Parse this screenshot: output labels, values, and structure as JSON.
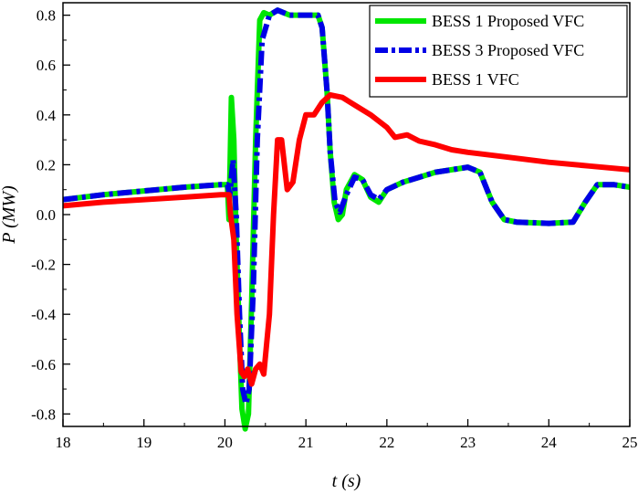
{
  "chart_data": {
    "type": "line",
    "xlabel": "t (s)",
    "ylabel": "P (MW)",
    "xlim": [
      18,
      25
    ],
    "ylim": [
      -0.85,
      0.85
    ],
    "x_ticks": [
      18,
      19,
      20,
      21,
      22,
      23,
      24,
      25
    ],
    "x_tick_labels": [
      "18",
      "19",
      "20",
      "21",
      "22",
      "23",
      "24",
      "25"
    ],
    "y_ticks": [
      0.8,
      0.6,
      0.4,
      0.2,
      0.0,
      -0.2,
      -0.4,
      -0.6,
      -0.8
    ],
    "y_tick_labels": [
      "0.8",
      "0.6",
      "0.4",
      "0.2",
      "0.0",
      "-0.2",
      "-0.4",
      "-0.6",
      "-0.8"
    ],
    "grid": false,
    "legend_position": "top-right",
    "series": [
      {
        "name": "BESS 1 Proposed VFC",
        "color": "#00e600",
        "style": "solid",
        "points": [
          [
            18,
            0.06
          ],
          [
            18.5,
            0.08
          ],
          [
            19,
            0.095
          ],
          [
            19.5,
            0.11
          ],
          [
            19.95,
            0.12
          ],
          [
            20.03,
            0.12
          ],
          [
            20.05,
            -0.02
          ],
          [
            20.08,
            0.47
          ],
          [
            20.11,
            0.3
          ],
          [
            20.14,
            -0.1
          ],
          [
            20.18,
            -0.5
          ],
          [
            20.21,
            -0.78
          ],
          [
            20.25,
            -0.86
          ],
          [
            20.29,
            -0.8
          ],
          [
            20.33,
            -0.35
          ],
          [
            20.38,
            0.3
          ],
          [
            20.43,
            0.78
          ],
          [
            20.48,
            0.81
          ],
          [
            20.55,
            0.8
          ],
          [
            20.65,
            0.82
          ],
          [
            20.8,
            0.8
          ],
          [
            21.0,
            0.8
          ],
          [
            21.15,
            0.8
          ],
          [
            21.2,
            0.75
          ],
          [
            21.26,
            0.5
          ],
          [
            21.3,
            0.25
          ],
          [
            21.35,
            0.05
          ],
          [
            21.4,
            -0.02
          ],
          [
            21.45,
            0.0
          ],
          [
            21.5,
            0.1
          ],
          [
            21.6,
            0.16
          ],
          [
            21.7,
            0.14
          ],
          [
            21.8,
            0.07
          ],
          [
            21.9,
            0.05
          ],
          [
            22.0,
            0.1
          ],
          [
            22.2,
            0.13
          ],
          [
            22.4,
            0.15
          ],
          [
            22.6,
            0.17
          ],
          [
            22.8,
            0.18
          ],
          [
            23.0,
            0.19
          ],
          [
            23.15,
            0.17
          ],
          [
            23.3,
            0.05
          ],
          [
            23.45,
            -0.02
          ],
          [
            23.6,
            -0.03
          ],
          [
            24.0,
            -0.035
          ],
          [
            24.3,
            -0.03
          ],
          [
            24.45,
            0.05
          ],
          [
            24.6,
            0.12
          ],
          [
            24.8,
            0.12
          ],
          [
            25,
            0.11
          ]
        ]
      },
      {
        "name": "BESS 3 Proposed VFC",
        "color": "#0000e6",
        "style": "dashdot",
        "points": [
          [
            18,
            0.06
          ],
          [
            18.5,
            0.08
          ],
          [
            19,
            0.095
          ],
          [
            19.5,
            0.11
          ],
          [
            19.95,
            0.12
          ],
          [
            20.03,
            0.12
          ],
          [
            20.06,
            0.08
          ],
          [
            20.1,
            0.22
          ],
          [
            20.14,
            0.0
          ],
          [
            20.18,
            -0.4
          ],
          [
            20.22,
            -0.7
          ],
          [
            20.26,
            -0.76
          ],
          [
            20.3,
            -0.7
          ],
          [
            20.35,
            -0.3
          ],
          [
            20.4,
            0.3
          ],
          [
            20.46,
            0.7
          ],
          [
            20.55,
            0.8
          ],
          [
            20.65,
            0.82
          ],
          [
            20.8,
            0.8
          ],
          [
            21.0,
            0.8
          ],
          [
            21.15,
            0.8
          ],
          [
            21.2,
            0.75
          ],
          [
            21.26,
            0.5
          ],
          [
            21.3,
            0.25
          ],
          [
            21.36,
            0.05
          ],
          [
            21.42,
            0.01
          ],
          [
            21.5,
            0.08
          ],
          [
            21.6,
            0.15
          ],
          [
            21.7,
            0.14
          ],
          [
            21.8,
            0.08
          ],
          [
            21.9,
            0.06
          ],
          [
            22.0,
            0.1
          ],
          [
            22.2,
            0.13
          ],
          [
            22.4,
            0.15
          ],
          [
            22.6,
            0.17
          ],
          [
            22.8,
            0.18
          ],
          [
            23.0,
            0.19
          ],
          [
            23.15,
            0.17
          ],
          [
            23.3,
            0.05
          ],
          [
            23.45,
            -0.02
          ],
          [
            23.6,
            -0.03
          ],
          [
            24.0,
            -0.035
          ],
          [
            24.3,
            -0.03
          ],
          [
            24.45,
            0.05
          ],
          [
            24.6,
            0.12
          ],
          [
            24.8,
            0.12
          ],
          [
            25,
            0.11
          ]
        ]
      },
      {
        "name": "BESS 1 VFC",
        "color": "#ff0000",
        "style": "solid",
        "points": [
          [
            18,
            0.035
          ],
          [
            18.5,
            0.05
          ],
          [
            19,
            0.06
          ],
          [
            19.5,
            0.07
          ],
          [
            19.95,
            0.08
          ],
          [
            20.05,
            0.08
          ],
          [
            20.07,
            0.0
          ],
          [
            20.11,
            -0.1
          ],
          [
            20.15,
            -0.4
          ],
          [
            20.2,
            -0.63
          ],
          [
            20.24,
            -0.65
          ],
          [
            20.28,
            -0.62
          ],
          [
            20.33,
            -0.68
          ],
          [
            20.38,
            -0.62
          ],
          [
            20.43,
            -0.6
          ],
          [
            20.48,
            -0.64
          ],
          [
            20.55,
            -0.4
          ],
          [
            20.6,
            0.0
          ],
          [
            20.65,
            0.3
          ],
          [
            20.7,
            0.3
          ],
          [
            20.77,
            0.1
          ],
          [
            20.84,
            0.13
          ],
          [
            20.92,
            0.3
          ],
          [
            21.0,
            0.4
          ],
          [
            21.1,
            0.4
          ],
          [
            21.2,
            0.45
          ],
          [
            21.3,
            0.48
          ],
          [
            21.45,
            0.47
          ],
          [
            21.6,
            0.44
          ],
          [
            21.8,
            0.4
          ],
          [
            22.0,
            0.35
          ],
          [
            22.1,
            0.31
          ],
          [
            22.25,
            0.32
          ],
          [
            22.4,
            0.295
          ],
          [
            22.6,
            0.28
          ],
          [
            22.8,
            0.26
          ],
          [
            23.0,
            0.25
          ],
          [
            23.5,
            0.23
          ],
          [
            24.0,
            0.21
          ],
          [
            24.5,
            0.195
          ],
          [
            25,
            0.18
          ]
        ]
      }
    ]
  }
}
